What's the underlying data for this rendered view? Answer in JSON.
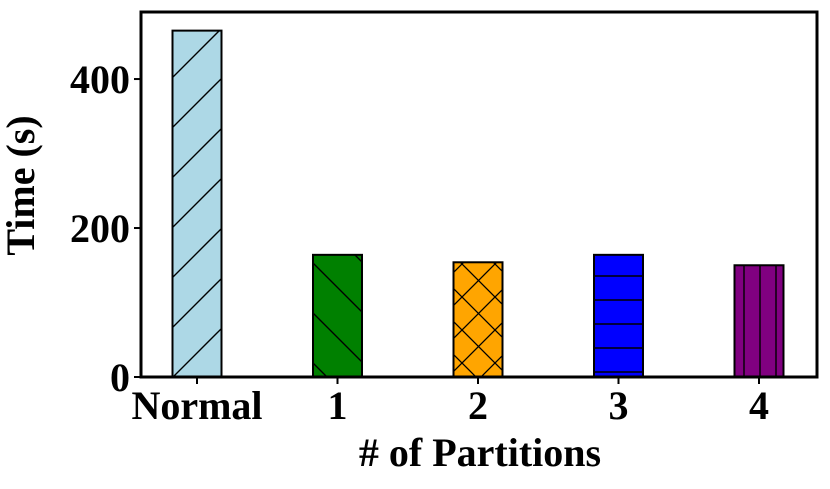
{
  "chart_data": {
    "type": "bar",
    "categories": [
      "Normal",
      "1",
      "2",
      "3",
      "4"
    ],
    "values": [
      465,
      164,
      154,
      164,
      150
    ],
    "colors": [
      "#add8e6",
      "#008000",
      "#ffa500",
      "#0000ff",
      "#800080"
    ],
    "hatches": [
      "/",
      "\\",
      "x",
      "-",
      "|"
    ],
    "xlabel": "# of Partitions",
    "ylabel": "Time (s)",
    "yticks": [
      "0",
      "200",
      "400"
    ],
    "ylim": [
      0,
      490
    ],
    "grid": false
  }
}
